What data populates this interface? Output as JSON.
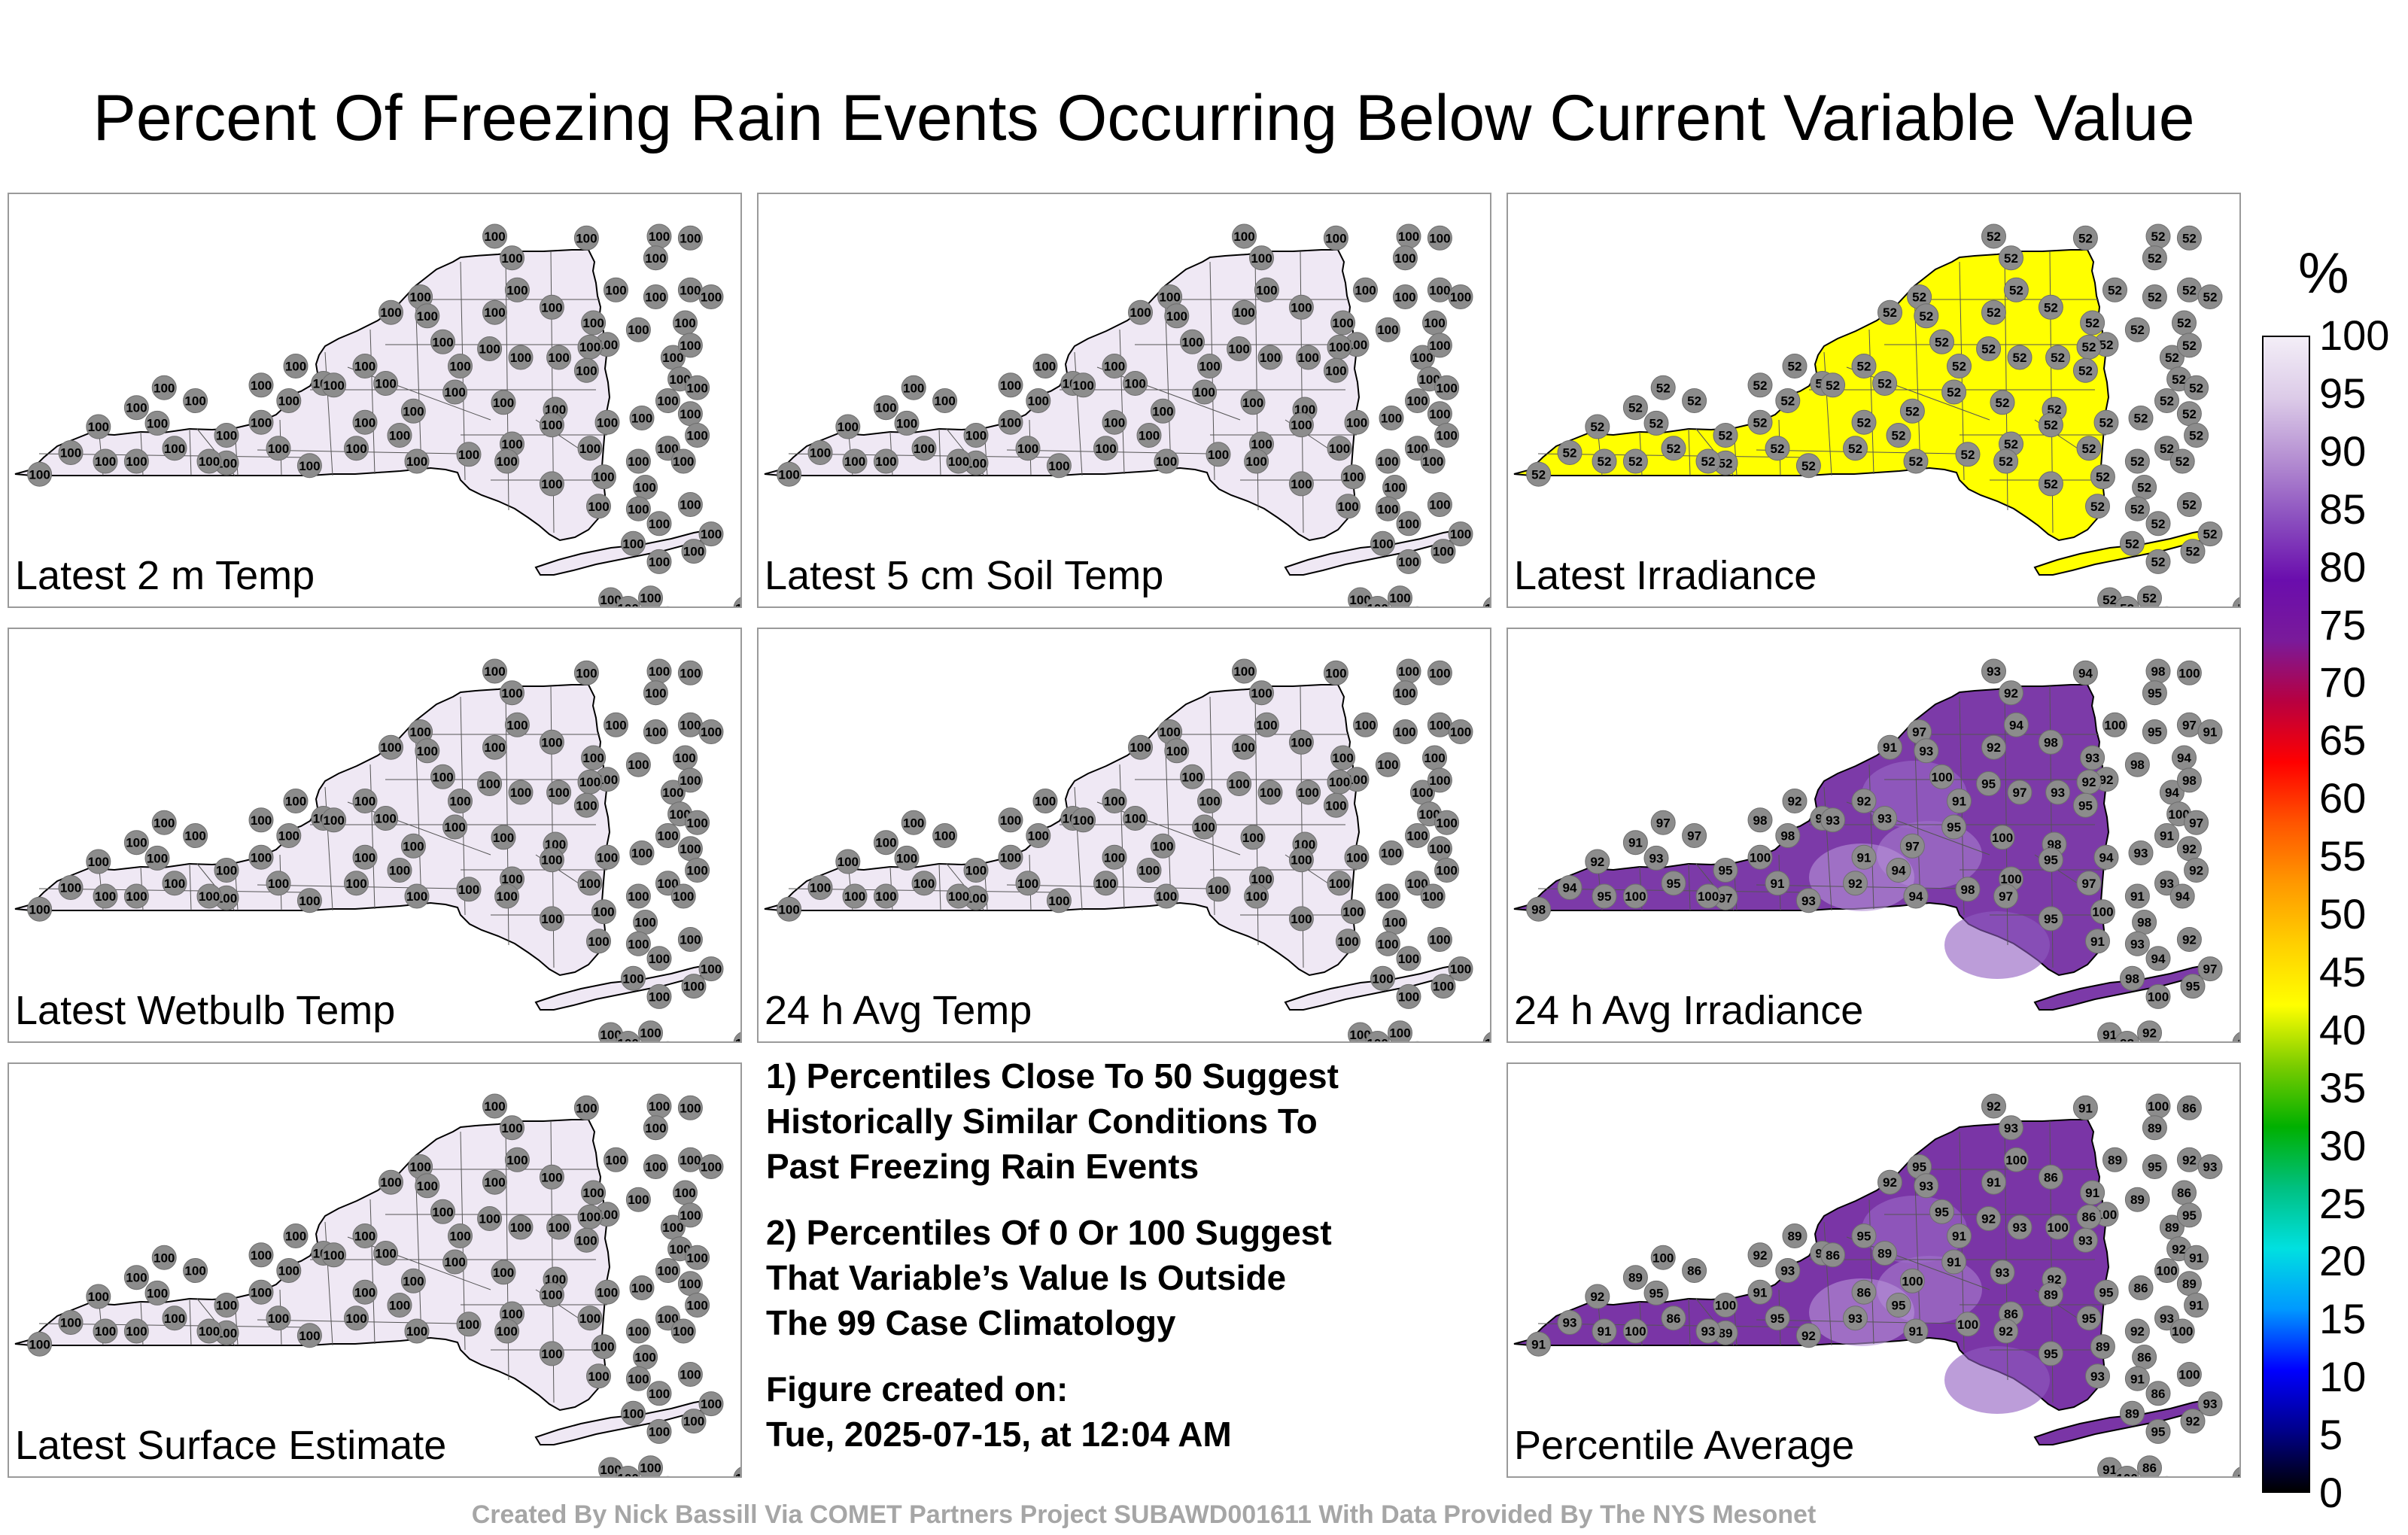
{
  "title": "Percent Of Freezing Rain Events Occurring Below Current Variable Value",
  "panels": [
    {
      "label": "Latest 2 m Temp",
      "value": "100",
      "fill": "#efe8f4",
      "field": "uniform"
    },
    {
      "label": "Latest 5 cm Soil Temp",
      "value": "100",
      "fill": "#efe8f4",
      "field": "uniform"
    },
    {
      "label": "Latest Irradiance",
      "value": "52",
      "fill": "#ffff00",
      "field": "uniform"
    },
    {
      "label": "Latest Wetbulb Temp",
      "value": "100",
      "fill": "#efe8f4",
      "field": "uniform"
    },
    {
      "label": "24 h Avg Temp",
      "value": "100",
      "fill": "#efe8f4",
      "field": "uniform"
    },
    {
      "label": "24 h Avg Irradiance",
      "value": "93",
      "fill": "#7c3aa8",
      "field": "varied"
    },
    {
      "label": "Latest Surface Estimate",
      "value": "100",
      "fill": "#efe8f4",
      "field": "uniform"
    },
    {
      "label": "Percentile Average",
      "value": "92",
      "fill": "#7a35a6",
      "field": "varied"
    }
  ],
  "notes": {
    "line1": "1) Percentiles Close To 50 Suggest",
    "line2": "Historically Similar Conditions To",
    "line3": "Past Freezing Rain Events",
    "line4": "2) Percentiles Of 0 Or 100 Suggest",
    "line5": "That Variable’s Value Is Outside",
    "line6": "The 99 Case Climatology",
    "line7": "Figure created on:",
    "line8": "Tue, 2025-07-15, at 12:04 AM"
  },
  "footer": "Created By Nick Bassill Via COMET Partners Project SUBAWD001611 With Data Provided By The NYS Mesonet",
  "colorbar": {
    "unit": "%",
    "ticks": [
      "100",
      "95",
      "90",
      "85",
      "80",
      "75",
      "70",
      "65",
      "60",
      "55",
      "50",
      "45",
      "40",
      "35",
      "30",
      "25",
      "20",
      "15",
      "10",
      "5",
      "0"
    ],
    "stops": [
      "#000000",
      "#00008b",
      "#0000ff",
      "#0099ff",
      "#00e0e0",
      "#00c080",
      "#00b000",
      "#7acc00",
      "#ffff00",
      "#ffd000",
      "#ff9900",
      "#ff5500",
      "#ff0000",
      "#b80040",
      "#7a1a9a",
      "#6a0dad",
      "#8b4fbf",
      "#b58fd2",
      "#dccbe8",
      "#f3eef7"
    ]
  },
  "varied_fields": {
    "24 h Avg Irradiance": [
      "93",
      "92",
      "94",
      "98",
      "100",
      "95",
      "97",
      "91"
    ],
    "Percentile Average": [
      "92",
      "93",
      "91",
      "100",
      "86",
      "89",
      "95"
    ]
  }
}
